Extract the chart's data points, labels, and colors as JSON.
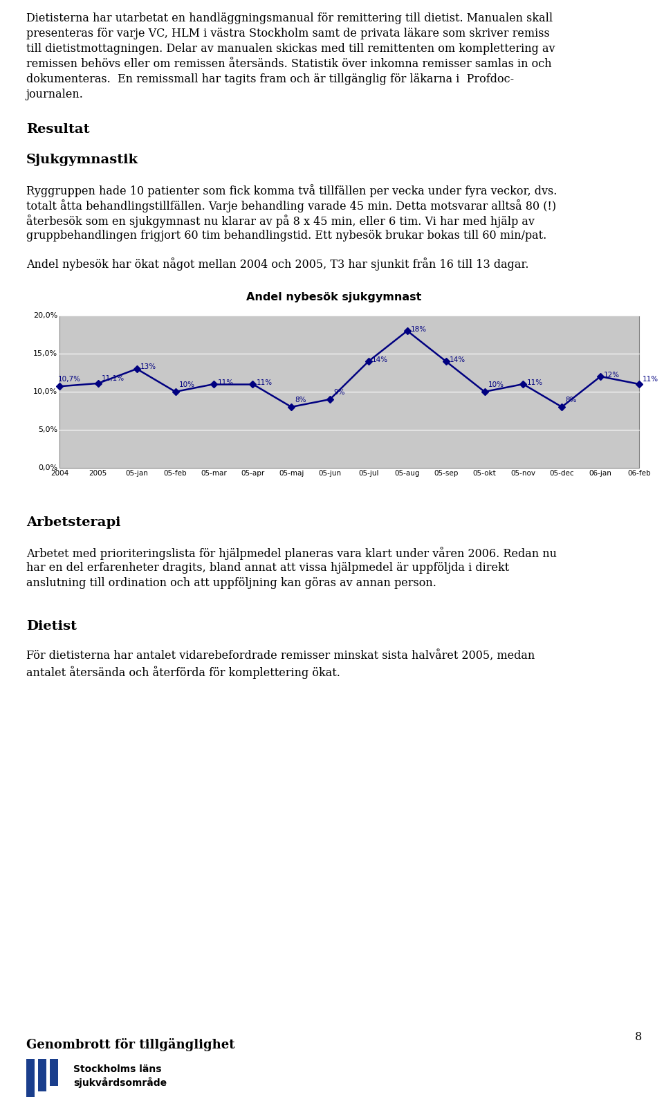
{
  "page_bg": "#ffffff",
  "text_color": "#000000",
  "lines1": [
    "Dietisterna har utarbetat en handläggningsmanual för remittering till dietist. Manualen skall",
    "presenteras för varje VC, HLM i västra Stockholm samt de privata läkare som skriver remiss",
    "till dietistmottagningen. Delar av manualen skickas med till remittenten om komplettering av",
    "remissen behövs eller om remissen återsänds. Statistik över inkomna remisser samlas in och",
    "dokumenteras.  En remissmall har tagits fram och är tillgänglig för läkarna i  Profdoc-",
    "journalen."
  ],
  "heading1": "Resultat",
  "heading2": "Sjukgymnastik",
  "lines2": [
    "Ryggruppen hade 10 patienter som fick komma två tillfällen per vecka under fyra veckor, dvs.",
    "totalt åtta behandlingstillfällen. Varje behandling varade 45 min. Detta motsvarar alltså 80 (!)",
    "återbesök som en sjukgymnast nu klarar av på 8 x 45 min, eller 6 tim. Vi har med hjälp av",
    "gruppbehandlingen frigjort 60 tim behandlingstid. Ett nybesök brukar bokas till 60 min/pat."
  ],
  "para3": "Andel nybesök har ökat något mellan 2004 och 2005, T3 har sjunkit från 16 till 13 dagar.",
  "chart_title": "Andel nybesök sjukgymnast",
  "chart_x_labels": [
    "2004",
    "2005",
    "05-jan",
    "05-feb",
    "05-mar",
    "05-apr",
    "05-maj",
    "05-jun",
    "05-jul",
    "05-aug",
    "05-sep",
    "05-okt",
    "05-nov",
    "05-dec",
    "06-jan",
    "06-feb"
  ],
  "chart_values": [
    10.7,
    11.1,
    13.0,
    10.0,
    11.0,
    11.0,
    8.0,
    9.0,
    14.0,
    18.0,
    14.0,
    10.0,
    11.0,
    8.0,
    12.0,
    11.0
  ],
  "chart_labels": [
    "10,7%",
    "11,1%",
    "13%",
    "10%",
    "11%",
    "11%",
    "8%",
    "9%",
    "14%",
    "18%",
    "14%",
    "10%",
    "11%",
    "8%",
    "12%",
    "11%"
  ],
  "chart_ylim": [
    0,
    20
  ],
  "chart_yticks": [
    0,
    5,
    10,
    15,
    20
  ],
  "chart_ytick_labels": [
    "0,0%",
    "5,0%",
    "10,0%",
    "15,0%",
    "20,0%"
  ],
  "chart_line_color": "#000080",
  "heading3": "Arbetsterapi",
  "lines4": [
    "Arbetet med prioriteringslista för hjälpmedel planeras vara klart under våren 2006. Redan nu",
    "har en del erfarenheter dragits, bland annat att vissa hjälpmedel är uppföljda i direkt",
    "anslutning till ordination och att uppföljning kan göras av annan person."
  ],
  "heading4": "Dietist",
  "lines5": [
    "För dietisterna har antalet vidarebefordrade remisser minskat sista halvåret 2005, medan",
    "antalet återsända och återförda för komplettering ökat."
  ],
  "page_number": "8",
  "footer_heading": "Genombrott för tillgänglighet",
  "logo_line1": "Stockholms läns",
  "logo_line2": "sjukvårdsområde"
}
